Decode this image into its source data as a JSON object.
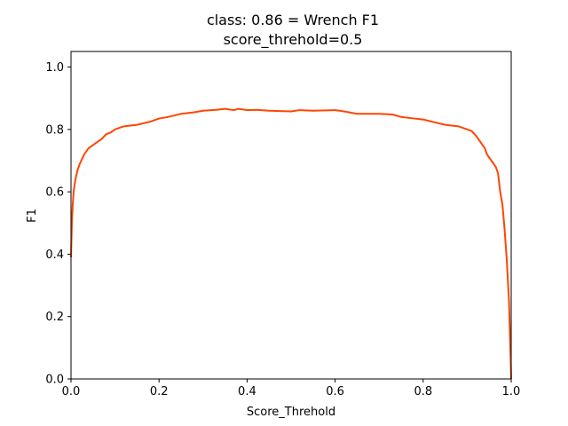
{
  "chart_data": {
    "type": "line",
    "title": "class: 0.86 = Wrench F1",
    "subtitle": "score_threhold=0.5",
    "xlabel": "Score_Threhold",
    "ylabel": "F1",
    "xlim": [
      0.0,
      1.0
    ],
    "ylim": [
      0.0,
      1.05
    ],
    "xticks": [
      "0.0",
      "0.2",
      "0.4",
      "0.6",
      "0.8",
      "1.0"
    ],
    "yticks": [
      "0.0",
      "0.2",
      "0.4",
      "0.6",
      "0.8",
      "1.0"
    ],
    "grid": false,
    "line_color": "#ff4500",
    "series": [
      {
        "x": [
          0.0,
          0.002,
          0.004,
          0.006,
          0.01,
          0.015,
          0.02,
          0.03,
          0.04,
          0.05,
          0.06,
          0.07,
          0.08,
          0.09,
          0.1,
          0.12,
          0.15,
          0.18,
          0.2,
          0.22,
          0.25,
          0.28,
          0.3,
          0.33,
          0.35,
          0.37,
          0.38,
          0.4,
          0.42,
          0.45,
          0.5,
          0.52,
          0.55,
          0.6,
          0.62,
          0.65,
          0.7,
          0.73,
          0.75,
          0.78,
          0.8,
          0.82,
          0.85,
          0.88,
          0.9,
          0.91,
          0.92,
          0.93,
          0.94,
          0.945,
          0.95,
          0.96,
          0.965,
          0.97,
          0.975,
          0.98,
          0.985,
          0.99,
          0.995,
          0.998,
          1.0
        ],
        "y": [
          0.39,
          0.5,
          0.56,
          0.6,
          0.64,
          0.67,
          0.69,
          0.72,
          0.74,
          0.75,
          0.76,
          0.77,
          0.785,
          0.79,
          0.8,
          0.81,
          0.815,
          0.825,
          0.835,
          0.84,
          0.85,
          0.855,
          0.86,
          0.863,
          0.866,
          0.862,
          0.866,
          0.862,
          0.863,
          0.86,
          0.858,
          0.862,
          0.86,
          0.862,
          0.858,
          0.85,
          0.85,
          0.848,
          0.84,
          0.835,
          0.832,
          0.825,
          0.815,
          0.81,
          0.8,
          0.795,
          0.78,
          0.76,
          0.74,
          0.72,
          0.71,
          0.69,
          0.68,
          0.66,
          0.6,
          0.56,
          0.48,
          0.38,
          0.25,
          0.1,
          0.0
        ]
      }
    ]
  }
}
